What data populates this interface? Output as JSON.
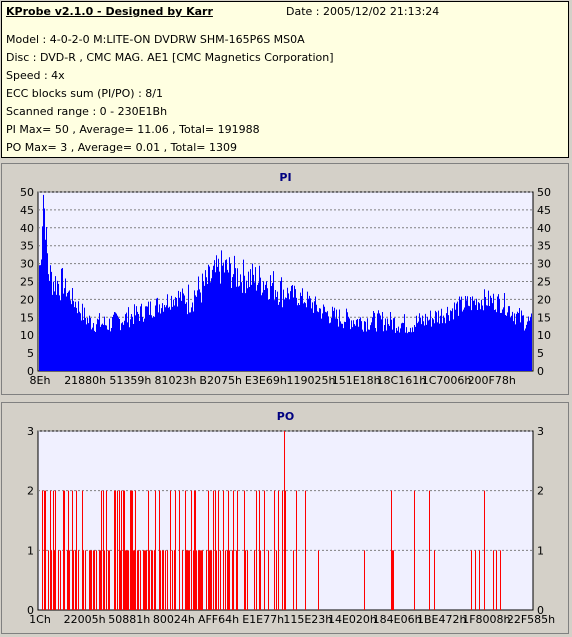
{
  "info": {
    "title": "KProbe v2.1.0 - Designed by Karr",
    "date": "Date : 2005/12/02 21:13:24",
    "model": "Model : 4-0-2-0 M:LITE-ON DVDRW SHM-165P6S MS0A",
    "disc": "Disc : DVD-R , CMC MAG. AE1 [CMC Magnetics Corporation]",
    "speed": "Speed : 4x",
    "ecc": "ECC blocks sum (PI/PO) : 8/1",
    "range": "Scanned range : 0 - 230E1Bh",
    "pi_stats": "PI Max= 50 , Average= 11.06 , Total= 191988",
    "po_stats": "PO Max= 3 , Average= 0.01 , Total= 1309"
  },
  "chart_data": [
    {
      "type": "area",
      "title": "PI",
      "ylim": [
        0,
        50
      ],
      "yticks": [
        "0",
        "5",
        "10",
        "15",
        "20",
        "25",
        "30",
        "35",
        "40",
        "45",
        "50"
      ],
      "xticks": [
        "8Eh",
        "21880h",
        "51359h",
        "81023h",
        "B2075h",
        "E3E69h",
        "119025h",
        "151E18h",
        "18C161h",
        "1C7006h",
        "200F78h"
      ],
      "color": "#0000ff",
      "grid": true,
      "profile_x": [
        0,
        0.005,
        0.01,
        0.02,
        0.03,
        0.05,
        0.08,
        0.1,
        0.14,
        0.18,
        0.22,
        0.25,
        0.28,
        0.3,
        0.33,
        0.35,
        0.37,
        0.4,
        0.43,
        0.46,
        0.5,
        0.54,
        0.57,
        0.6,
        0.65,
        0.7,
        0.75,
        0.8,
        0.85,
        0.9,
        0.94,
        0.97,
        1.0
      ],
      "profile_y": [
        30,
        29,
        50,
        28,
        25,
        24,
        18,
        14,
        13,
        15,
        17,
        19,
        21,
        20,
        23,
        26,
        29,
        27,
        26,
        25,
        22,
        20,
        17,
        15,
        14,
        14,
        13,
        15,
        18,
        20,
        19,
        15,
        13
      ]
    },
    {
      "type": "bar",
      "title": "PO",
      "ylim": [
        0,
        3
      ],
      "yticks": [
        "0",
        "1",
        "2",
        "3"
      ],
      "xticks": [
        "1Ch",
        "22005h",
        "50881h",
        "80024h",
        "AFF64h",
        "E1E77h",
        "115E23h",
        "14E020h",
        "184E06h",
        "1BE472h",
        "1F8008h",
        "22F585h"
      ],
      "color": "#ff0000",
      "grid": true,
      "peak": [
        0.498,
        3
      ]
    }
  ]
}
